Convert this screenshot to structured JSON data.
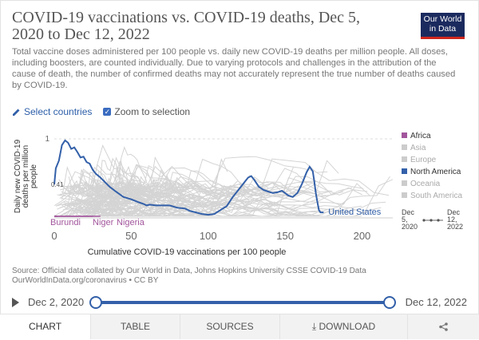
{
  "header": {
    "title": "COVID-19 vaccinations vs. COVID-19 deaths, Dec 5, 2020 to Dec 12, 2022",
    "subtitle": "Total vaccine doses administered per 100 people vs. daily new COVID-19 deaths per million people. All doses, including boosters, are counted individually. Due to varying protocols and challenges in the attribution of the cause of death, the number of confirmed deaths may not accurately represent the true number of deaths caused by COVID-19.",
    "logo_line1": "Our World",
    "logo_line2": "in Data"
  },
  "controls": {
    "select_countries": "Select countries",
    "zoom": "Zoom to selection"
  },
  "chart_data": {
    "type": "line",
    "xlabel": "Cumulative COVID-19 vaccinations per 100 people",
    "ylabel": "Daily new COVID-19 deaths per million people",
    "ylabel_lines": [
      "Daily new COVID-19",
      "deaths per million",
      "people"
    ],
    "xlim": [
      0,
      220
    ],
    "ylim": [
      0,
      1
    ],
    "xticks": [
      0,
      50,
      100,
      150,
      200
    ],
    "x_tick_labels": [
      "0",
      "50",
      "100",
      "150",
      "200"
    ],
    "y_tick_labels": [
      "1",
      "0.41"
    ],
    "annotations": [
      "United States",
      "Burundi",
      "Niger",
      "Nigeria"
    ],
    "legend": [
      "Africa",
      "Asia",
      "Europe",
      "North America",
      "Oceania",
      "South America"
    ],
    "legend_colors": [
      "#a2559c",
      "#cccccc",
      "#cccccc",
      "#3360a9",
      "#cccccc",
      "#cccccc"
    ],
    "legend_active": [
      true,
      false,
      false,
      true,
      false,
      false
    ],
    "legend_placement": "right",
    "size_legend": {
      "start": [
        "Dec",
        "5,",
        "2020"
      ],
      "end": [
        "Dec",
        "12,",
        "2022"
      ]
    },
    "series": [
      {
        "name": "United States",
        "color": "#3360a9",
        "points": [
          [
            0,
            0.41
          ],
          [
            1,
            0.62
          ],
          [
            3,
            0.72
          ],
          [
            5,
            0.92
          ],
          [
            7,
            0.98
          ],
          [
            9,
            0.95
          ],
          [
            11,
            0.87
          ],
          [
            13,
            0.89
          ],
          [
            15,
            0.83
          ],
          [
            17,
            0.76
          ],
          [
            19,
            0.77
          ],
          [
            21,
            0.7
          ],
          [
            23,
            0.68
          ],
          [
            25,
            0.6
          ],
          [
            27,
            0.55
          ],
          [
            30,
            0.5
          ],
          [
            33,
            0.44
          ],
          [
            36,
            0.38
          ],
          [
            40,
            0.32
          ],
          [
            45,
            0.25
          ],
          [
            50,
            0.22
          ],
          [
            55,
            0.18
          ],
          [
            58,
            0.16
          ],
          [
            60,
            0.14
          ],
          [
            62,
            0.15
          ],
          [
            66,
            0.14
          ],
          [
            70,
            0.14
          ],
          [
            75,
            0.14
          ],
          [
            80,
            0.11
          ],
          [
            85,
            0.1
          ],
          [
            88,
            0.07
          ],
          [
            92,
            0.05
          ],
          [
            96,
            0.03
          ],
          [
            100,
            0.02
          ],
          [
            104,
            0.03
          ],
          [
            108,
            0.08
          ],
          [
            112,
            0.13
          ],
          [
            116,
            0.25
          ],
          [
            120,
            0.35
          ],
          [
            124,
            0.45
          ],
          [
            126,
            0.5
          ],
          [
            128,
            0.52
          ],
          [
            130,
            0.47
          ],
          [
            133,
            0.38
          ],
          [
            136,
            0.34
          ],
          [
            139,
            0.32
          ],
          [
            142,
            0.3
          ],
          [
            145,
            0.31
          ],
          [
            148,
            0.33
          ],
          [
            152,
            0.27
          ],
          [
            155,
            0.25
          ],
          [
            158,
            0.3
          ],
          [
            161,
            0.42
          ],
          [
            164,
            0.57
          ],
          [
            166,
            0.64
          ],
          [
            168,
            0.58
          ],
          [
            169,
            0.45
          ],
          [
            170,
            0.3
          ],
          [
            171,
            0.18
          ],
          [
            172,
            0.08
          ],
          [
            173,
            0.05
          ],
          [
            175,
            0.05
          ]
        ]
      },
      {
        "name": "Burundi",
        "color": "#a2559c",
        "points": [
          [
            0,
            0.0
          ],
          [
            2,
            0.0
          ]
        ]
      },
      {
        "name": "Niger",
        "color": "#a2559c",
        "points": [
          [
            0,
            0.0
          ],
          [
            25,
            0.0
          ]
        ]
      },
      {
        "name": "Nigeria",
        "color": "#a2559c",
        "points": [
          [
            0,
            0.0
          ],
          [
            30,
            0.0
          ]
        ]
      }
    ]
  },
  "footer": {
    "source_line1": "Source: Official data collated by Our World in Data, Johns Hopkins University CSSE COVID-19 Data",
    "source_line2": "OurWorldInData.org/coronavirus • CC BY"
  },
  "timeline": {
    "start": "Dec 2, 2020",
    "end": "Dec 12, 2022",
    "start_fraction": 0,
    "end_fraction": 1
  },
  "tabs": {
    "chart": "CHART",
    "table": "TABLE",
    "sources": "SOURCES",
    "download": "DOWNLOAD"
  }
}
